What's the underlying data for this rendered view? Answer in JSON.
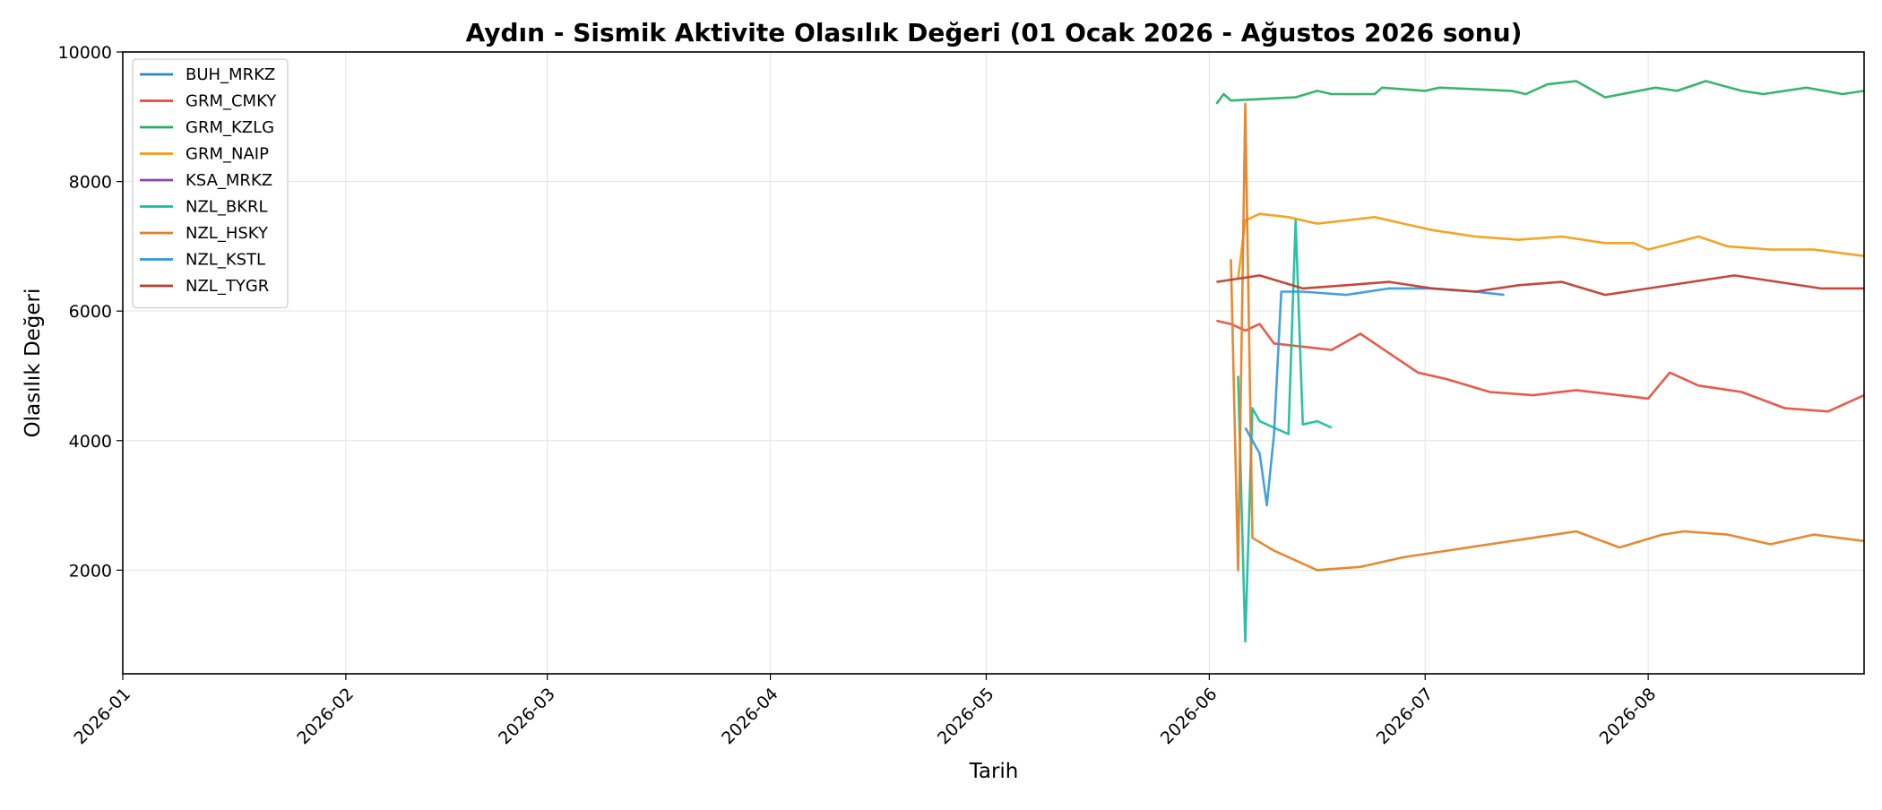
{
  "chart_data": {
    "type": "line",
    "title": "Aydın - Sismik Aktivite Olasılık Değeri (01 Ocak 2026 - Ağustos 2026 sonu)",
    "xlabel": "Tarih",
    "ylabel": "Olasılık Değeri",
    "xlim": [
      "2026-01-01",
      "2026-08-31"
    ],
    "ylim": [
      400,
      10000
    ],
    "x_ticks": [
      "2026-01",
      "2026-02",
      "2026-03",
      "2026-04",
      "2026-05",
      "2026-06",
      "2026-07",
      "2026-08"
    ],
    "y_ticks": [
      2000,
      4000,
      6000,
      8000,
      10000
    ],
    "grid": true,
    "legend_position": "top-left",
    "series": [
      {
        "name": "BUH_MRKZ",
        "color": "#2e86c1",
        "points": []
      },
      {
        "name": "GRM_CMKY",
        "color": "#e74c3c",
        "points": [
          [
            "2026-06-02",
            5850
          ],
          [
            "2026-06-04",
            5800
          ],
          [
            "2026-06-06",
            5700
          ],
          [
            "2026-06-08",
            5800
          ],
          [
            "2026-06-10",
            5500
          ],
          [
            "2026-06-14",
            5450
          ],
          [
            "2026-06-18",
            5400
          ],
          [
            "2026-06-22",
            5650
          ],
          [
            "2026-06-26",
            5350
          ],
          [
            "2026-06-30",
            5050
          ],
          [
            "2026-07-04",
            4950
          ],
          [
            "2026-07-10",
            4750
          ],
          [
            "2026-07-16",
            4700
          ],
          [
            "2026-07-22",
            4780
          ],
          [
            "2026-07-28",
            4700
          ],
          [
            "2026-08-01",
            4650
          ],
          [
            "2026-08-04",
            5050
          ],
          [
            "2026-08-08",
            4850
          ],
          [
            "2026-08-14",
            4750
          ],
          [
            "2026-08-20",
            4500
          ],
          [
            "2026-08-26",
            4450
          ],
          [
            "2026-08-31",
            4700
          ]
        ]
      },
      {
        "name": "GRM_KZLG",
        "color": "#27ae60",
        "points": [
          [
            "2026-06-02",
            9200
          ],
          [
            "2026-06-03",
            9350
          ],
          [
            "2026-06-04",
            9250
          ],
          [
            "2026-06-13",
            9300
          ],
          [
            "2026-06-16",
            9400
          ],
          [
            "2026-06-18",
            9350
          ],
          [
            "2026-06-24",
            9350
          ],
          [
            "2026-06-25",
            9450
          ],
          [
            "2026-07-01",
            9400
          ],
          [
            "2026-07-03",
            9450
          ],
          [
            "2026-07-13",
            9400
          ],
          [
            "2026-07-15",
            9350
          ],
          [
            "2026-07-18",
            9500
          ],
          [
            "2026-07-22",
            9550
          ],
          [
            "2026-07-26",
            9300
          ],
          [
            "2026-08-02",
            9450
          ],
          [
            "2026-08-05",
            9400
          ],
          [
            "2026-08-09",
            9550
          ],
          [
            "2026-08-14",
            9400
          ],
          [
            "2026-08-17",
            9350
          ],
          [
            "2026-08-23",
            9450
          ],
          [
            "2026-08-28",
            9350
          ],
          [
            "2026-08-31",
            9400
          ]
        ]
      },
      {
        "name": "GRM_NAIP",
        "color": "#f39c12",
        "points": [
          [
            "2026-06-05",
            6500
          ],
          [
            "2026-06-06",
            7400
          ],
          [
            "2026-06-08",
            7500
          ],
          [
            "2026-06-12",
            7450
          ],
          [
            "2026-06-16",
            7350
          ],
          [
            "2026-06-20",
            7400
          ],
          [
            "2026-06-24",
            7450
          ],
          [
            "2026-06-28",
            7350
          ],
          [
            "2026-07-02",
            7250
          ],
          [
            "2026-07-08",
            7150
          ],
          [
            "2026-07-14",
            7100
          ],
          [
            "2026-07-20",
            7150
          ],
          [
            "2026-07-26",
            7050
          ],
          [
            "2026-07-30",
            7050
          ],
          [
            "2026-08-01",
            6950
          ],
          [
            "2026-08-08",
            7150
          ],
          [
            "2026-08-12",
            7000
          ],
          [
            "2026-08-18",
            6950
          ],
          [
            "2026-08-24",
            6950
          ],
          [
            "2026-08-31",
            6850
          ]
        ]
      },
      {
        "name": "KSA_MRKZ",
        "color": "#8e44ad",
        "points": []
      },
      {
        "name": "NZL_BKRL",
        "color": "#1abc9c",
        "points": [
          [
            "2026-06-05",
            5000
          ],
          [
            "2026-06-06",
            900
          ],
          [
            "2026-06-07",
            4500
          ],
          [
            "2026-06-08",
            4300
          ],
          [
            "2026-06-10",
            4200
          ],
          [
            "2026-06-12",
            4100
          ],
          [
            "2026-06-13",
            7400
          ],
          [
            "2026-06-14",
            4250
          ],
          [
            "2026-06-16",
            4300
          ],
          [
            "2026-06-18",
            4200
          ]
        ]
      },
      {
        "name": "NZL_HSKY",
        "color": "#e67e22",
        "points": [
          [
            "2026-06-04",
            6800
          ],
          [
            "2026-06-05",
            2000
          ],
          [
            "2026-06-06",
            9200
          ],
          [
            "2026-06-07",
            2500
          ],
          [
            "2026-06-10",
            2300
          ],
          [
            "2026-06-16",
            2000
          ],
          [
            "2026-06-22",
            2050
          ],
          [
            "2026-06-28",
            2200
          ],
          [
            "2026-07-04",
            2300
          ],
          [
            "2026-07-10",
            2400
          ],
          [
            "2026-07-16",
            2500
          ],
          [
            "2026-07-22",
            2600
          ],
          [
            "2026-07-28",
            2350
          ],
          [
            "2026-08-03",
            2550
          ],
          [
            "2026-08-06",
            2600
          ],
          [
            "2026-08-12",
            2550
          ],
          [
            "2026-08-18",
            2400
          ],
          [
            "2026-08-24",
            2550
          ],
          [
            "2026-08-31",
            2450
          ]
        ]
      },
      {
        "name": "NZL_KSTL",
        "color": "#3498db",
        "points": [
          [
            "2026-06-06",
            4200
          ],
          [
            "2026-06-08",
            3800
          ],
          [
            "2026-06-09",
            3000
          ],
          [
            "2026-06-10",
            4100
          ],
          [
            "2026-06-11",
            6300
          ],
          [
            "2026-06-14",
            6300
          ],
          [
            "2026-06-20",
            6250
          ],
          [
            "2026-06-26",
            6350
          ],
          [
            "2026-07-02",
            6350
          ],
          [
            "2026-07-08",
            6300
          ],
          [
            "2026-07-12",
            6250
          ]
        ]
      },
      {
        "name": "NZL_TYGR",
        "color": "#c0392b",
        "points": [
          [
            "2026-06-02",
            6450
          ],
          [
            "2026-06-08",
            6550
          ],
          [
            "2026-06-14",
            6350
          ],
          [
            "2026-06-20",
            6400
          ],
          [
            "2026-06-26",
            6450
          ],
          [
            "2026-07-02",
            6350
          ],
          [
            "2026-07-08",
            6300
          ],
          [
            "2026-07-14",
            6400
          ],
          [
            "2026-07-20",
            6450
          ],
          [
            "2026-07-26",
            6250
          ],
          [
            "2026-08-01",
            6350
          ],
          [
            "2026-08-07",
            6450
          ],
          [
            "2026-08-13",
            6550
          ],
          [
            "2026-08-19",
            6450
          ],
          [
            "2026-08-25",
            6350
          ],
          [
            "2026-08-31",
            6350
          ]
        ]
      }
    ]
  }
}
